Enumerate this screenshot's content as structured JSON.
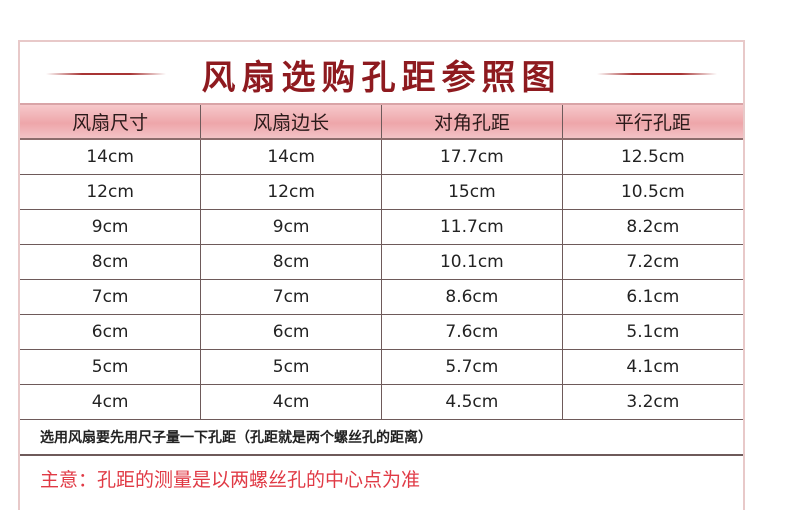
{
  "title": "风扇选购孔距参照图",
  "headers": [
    "风扇尺寸",
    "风扇边长",
    "对角孔距",
    "平行孔距"
  ],
  "rows": [
    [
      "14cm",
      "14cm",
      "17.7cm",
      "12.5cm"
    ],
    [
      "12cm",
      "12cm",
      "15cm",
      "10.5cm"
    ],
    [
      "9cm",
      "9cm",
      "11.7cm",
      "8.2cm"
    ],
    [
      "8cm",
      "8cm",
      "10.1cm",
      "7.2cm"
    ],
    [
      "7cm",
      "7cm",
      "8.6cm",
      "6.1cm"
    ],
    [
      "6cm",
      "6cm",
      "7.6cm",
      "5.1cm"
    ],
    [
      "5cm",
      "5cm",
      "5.7cm",
      "4.1cm"
    ],
    [
      "4cm",
      "4cm",
      "4.5cm",
      "3.2cm"
    ]
  ],
  "note": "选用风扇要先用尺子量一下孔距（孔距就是两个螺丝孔的距离）",
  "warning": "主意：孔距的测量是以两螺丝孔的中心点为准",
  "colors": {
    "title": "#8e1a1f",
    "header_bg": "#eea6aa",
    "warning": "#e03a45"
  }
}
